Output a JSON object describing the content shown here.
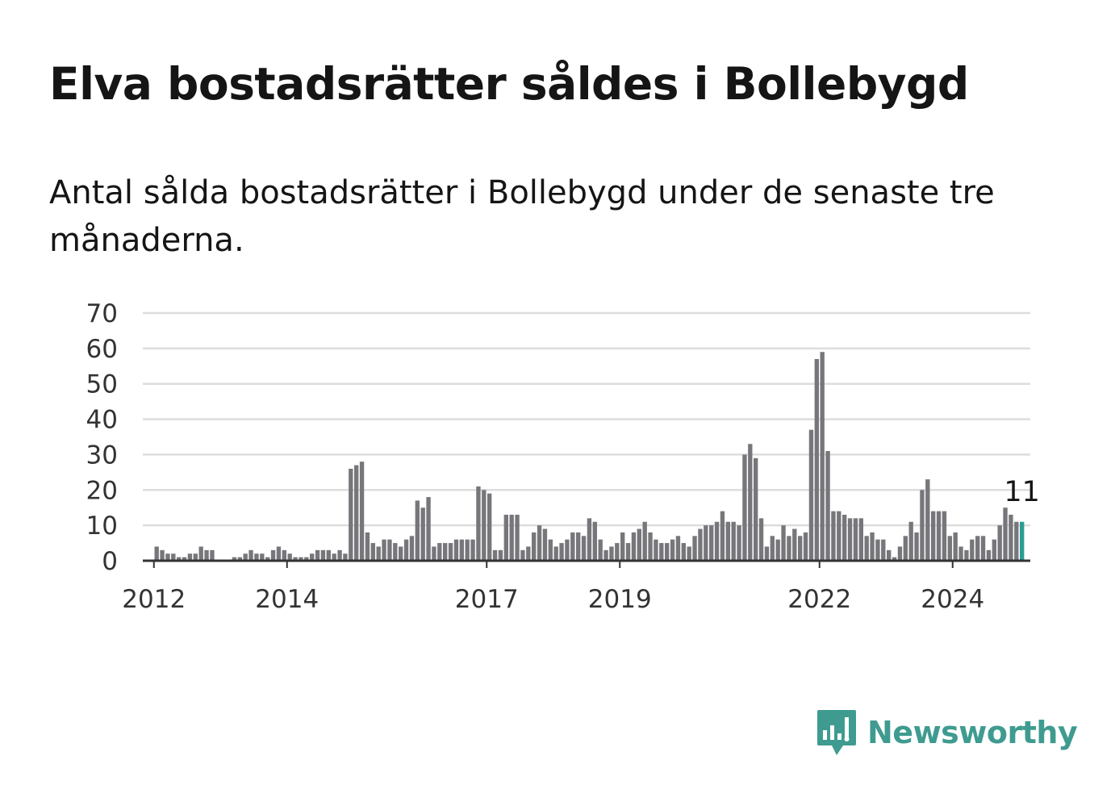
{
  "title": "Elva bostadsrätter såldes i Bollebygd",
  "subtitle": "Antal sålda bostadsrätter i Bollebygd under de senaste tre månaderna.",
  "brand": {
    "name": "Newsworthy",
    "icon": "newsworthy-logo-icon",
    "color": "#3f9b90"
  },
  "chart_data": {
    "type": "bar",
    "title": "Elva bostadsrätter såldes i Bollebygd",
    "xlabel": "",
    "ylabel": "",
    "ylim": [
      0,
      70
    ],
    "yticks": [
      0,
      10,
      20,
      30,
      40,
      50,
      60,
      70
    ],
    "xlim": [
      "2011-11",
      "2025-03"
    ],
    "xticks": [
      {
        "label": "2012",
        "month": "2012-01"
      },
      {
        "label": "2014",
        "month": "2014-01"
      },
      {
        "label": "2017",
        "month": "2017-01"
      },
      {
        "label": "2019",
        "month": "2019-01"
      },
      {
        "label": "2022",
        "month": "2022-01"
      },
      {
        "label": "2024",
        "month": "2024-01"
      }
    ],
    "grid": true,
    "legend": "none",
    "bar_color": "#77767b",
    "highlight_color": "#2a9d93",
    "series": [
      {
        "x": [
          "2012-01",
          "2012-02",
          "2012-03",
          "2012-04",
          "2012-05",
          "2012-06",
          "2012-07",
          "2012-08",
          "2012-09",
          "2012-10",
          "2012-11",
          "2012-12",
          "2013-01",
          "2013-02",
          "2013-03",
          "2013-04",
          "2013-05",
          "2013-06",
          "2013-07",
          "2013-08",
          "2013-09",
          "2013-10",
          "2013-11",
          "2013-12",
          "2014-01",
          "2014-02",
          "2014-03",
          "2014-04",
          "2014-05",
          "2014-06",
          "2014-07",
          "2014-08",
          "2014-09",
          "2014-10",
          "2014-11",
          "2014-12",
          "2015-01",
          "2015-02",
          "2015-03",
          "2015-04",
          "2015-05",
          "2015-06",
          "2015-07",
          "2015-08",
          "2015-09",
          "2015-10",
          "2015-11",
          "2015-12",
          "2016-01",
          "2016-02",
          "2016-03",
          "2016-04",
          "2016-05",
          "2016-06",
          "2016-07",
          "2016-08",
          "2016-09",
          "2016-10",
          "2016-11",
          "2016-12",
          "2017-01",
          "2017-02",
          "2017-03",
          "2017-04",
          "2017-05",
          "2017-06",
          "2017-07",
          "2017-08",
          "2017-09",
          "2017-10",
          "2017-11",
          "2017-12",
          "2018-01",
          "2018-02",
          "2018-03",
          "2018-04",
          "2018-05",
          "2018-06",
          "2018-07",
          "2018-08",
          "2018-09",
          "2018-10",
          "2018-11",
          "2018-12",
          "2019-01",
          "2019-02",
          "2019-03",
          "2019-04",
          "2019-05",
          "2019-06",
          "2019-07",
          "2019-08",
          "2019-09",
          "2019-10",
          "2019-11",
          "2019-12",
          "2020-01",
          "2020-02",
          "2020-03",
          "2020-04",
          "2020-05",
          "2020-06",
          "2020-07",
          "2020-08",
          "2020-09",
          "2020-10",
          "2020-11",
          "2020-12",
          "2021-01",
          "2021-02",
          "2021-03",
          "2021-04",
          "2021-05",
          "2021-06",
          "2021-07",
          "2021-08",
          "2021-09",
          "2021-10",
          "2021-11",
          "2021-12",
          "2022-01",
          "2022-02",
          "2022-03",
          "2022-04",
          "2022-05",
          "2022-06",
          "2022-07",
          "2022-08",
          "2022-09",
          "2022-10",
          "2022-11",
          "2022-12",
          "2023-01",
          "2023-02",
          "2023-03",
          "2023-04",
          "2023-05",
          "2023-06",
          "2023-07",
          "2023-08",
          "2023-09",
          "2023-10",
          "2023-11",
          "2023-12",
          "2024-01",
          "2024-02",
          "2024-03",
          "2024-04",
          "2024-05",
          "2024-06",
          "2024-07",
          "2024-08",
          "2024-09",
          "2024-10",
          "2024-11",
          "2024-12",
          "2025-01"
        ],
        "values": [
          4,
          3,
          2,
          2,
          1,
          1,
          2,
          2,
          4,
          3,
          3,
          0,
          0,
          0,
          1,
          1,
          2,
          3,
          2,
          2,
          1,
          3,
          4,
          3,
          2,
          1,
          1,
          1,
          2,
          3,
          3,
          3,
          2,
          3,
          2,
          26,
          27,
          28,
          8,
          5,
          4,
          6,
          6,
          5,
          4,
          6,
          7,
          17,
          15,
          18,
          4,
          5,
          5,
          5,
          6,
          6,
          6,
          6,
          21,
          20,
          19,
          3,
          3,
          13,
          13,
          13,
          3,
          4,
          8,
          10,
          9,
          6,
          4,
          5,
          6,
          8,
          8,
          7,
          12,
          11,
          6,
          3,
          4,
          5,
          8,
          5,
          8,
          9,
          11,
          8,
          6,
          5,
          5,
          6,
          7,
          5,
          4,
          7,
          9,
          10,
          10,
          11,
          14,
          11,
          11,
          10,
          30,
          33,
          29,
          12,
          4,
          7,
          6,
          10,
          7,
          9,
          7,
          8,
          37,
          57,
          59,
          31,
          14,
          14,
          13,
          12,
          12,
          12,
          7,
          8,
          6,
          6,
          3,
          1,
          4,
          7,
          11,
          8,
          20,
          23,
          14,
          14,
          14,
          7,
          8,
          4,
          3,
          6,
          7,
          7,
          3,
          6,
          10,
          15,
          13,
          11,
          11
        ],
        "highlight_last": true
      }
    ],
    "annotations": [
      {
        "month": "2025-01",
        "text": "11"
      }
    ]
  }
}
